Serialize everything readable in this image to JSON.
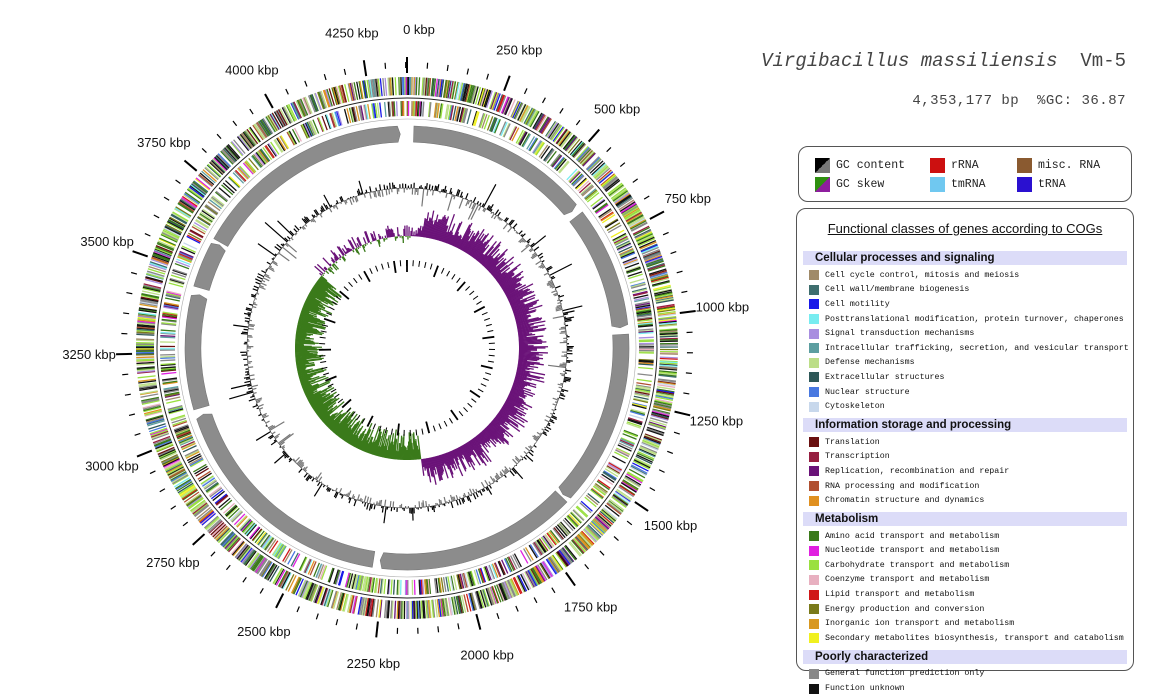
{
  "header": {
    "organism": "Virgibacillus massiliensis",
    "strain": "Vm-5",
    "stats": "4,353,177 bp  %GC: 36.87"
  },
  "genome": {
    "length_bp": 4353177,
    "tick_labels": [
      "0 kbp",
      "250 kbp",
      "500 kbp",
      "750 kbp",
      "1000 kbp",
      "1250 kbp",
      "1500 kbp",
      "1750 kbp",
      "2000 kbp",
      "2250 kbp",
      "2500 kbp",
      "2750 kbp",
      "3000 kbp",
      "3250 kbp",
      "3500 kbp",
      "3750 kbp",
      "4000 kbp",
      "4250 kbp"
    ]
  },
  "track_legend": [
    {
      "label": "GC content",
      "color": "#000000",
      "color2": "#666666",
      "icon": "gc-content-swatch"
    },
    {
      "label": "GC skew",
      "color": "#8e1e9e",
      "color2": "#2f8f10",
      "icon": "gc-skew-swatch"
    },
    {
      "label": "rRNA",
      "color": "#cc1010"
    },
    {
      "label": "tmRNA",
      "color": "#70c8f0"
    },
    {
      "label": "misc. RNA",
      "color": "#8a5a30"
    },
    {
      "label": "tRNA",
      "color": "#2a10d0"
    }
  ],
  "cog_legend": {
    "title": "Functional classes of genes according to COGs",
    "sections": [
      {
        "name": "Cellular processes and signaling",
        "items": [
          {
            "label": "Cell cycle control, mitosis and meiosis",
            "color": "#a08a68"
          },
          {
            "label": "Cell wall/membrane biogenesis",
            "color": "#3e6e6e"
          },
          {
            "label": "Cell motility",
            "color": "#1818e8"
          },
          {
            "label": "Posttranslational modification, protein turnover, chaperones",
            "color": "#78ecf0"
          },
          {
            "label": "Signal transduction mechanisms",
            "color": "#a88ee0"
          },
          {
            "label": "Intracellular trafficking, secretion, and vesicular transport",
            "color": "#5c9ea0"
          },
          {
            "label": "Defense mechanisms",
            "color": "#bcde88"
          },
          {
            "label": "Extracellular structures",
            "color": "#2e5858"
          },
          {
            "label": "Nuclear structure",
            "color": "#4878e0"
          },
          {
            "label": "Cytoskeleton",
            "color": "#c8d8ec"
          }
        ]
      },
      {
        "name": "Information storage and processing",
        "items": [
          {
            "label": "Translation",
            "color": "#6a1010"
          },
          {
            "label": "Transcription",
            "color": "#961e40"
          },
          {
            "label": "Replication, recombination and repair",
            "color": "#6a1278"
          },
          {
            "label": "RNA processing and modification",
            "color": "#b05030"
          },
          {
            "label": "Chromatin structure and dynamics",
            "color": "#e09020"
          }
        ]
      },
      {
        "name": "Metabolism",
        "items": [
          {
            "label": "Amino acid transport and metabolism",
            "color": "#3a7a1a"
          },
          {
            "label": "Nucleotide transport and metabolism",
            "color": "#e020e0"
          },
          {
            "label": "Carbohydrate transport and metabolism",
            "color": "#9ae040"
          },
          {
            "label": "Coenzyme transport and metabolism",
            "color": "#e8b0c0"
          },
          {
            "label": "Lipid transport and metabolism",
            "color": "#d01818"
          },
          {
            "label": "Energy production and conversion",
            "color": "#7a7a1a"
          },
          {
            "label": "Inorganic ion transport and metabolism",
            "color": "#d89820"
          },
          {
            "label": "Secondary metabolites biosynthesis, transport and catabolism",
            "color": "#f0f020"
          }
        ]
      },
      {
        "name": "Poorly characterized",
        "items": [
          {
            "label": "General function prediction only",
            "color": "#888888"
          },
          {
            "label": "Function unknown",
            "color": "#111111"
          }
        ]
      }
    ]
  }
}
